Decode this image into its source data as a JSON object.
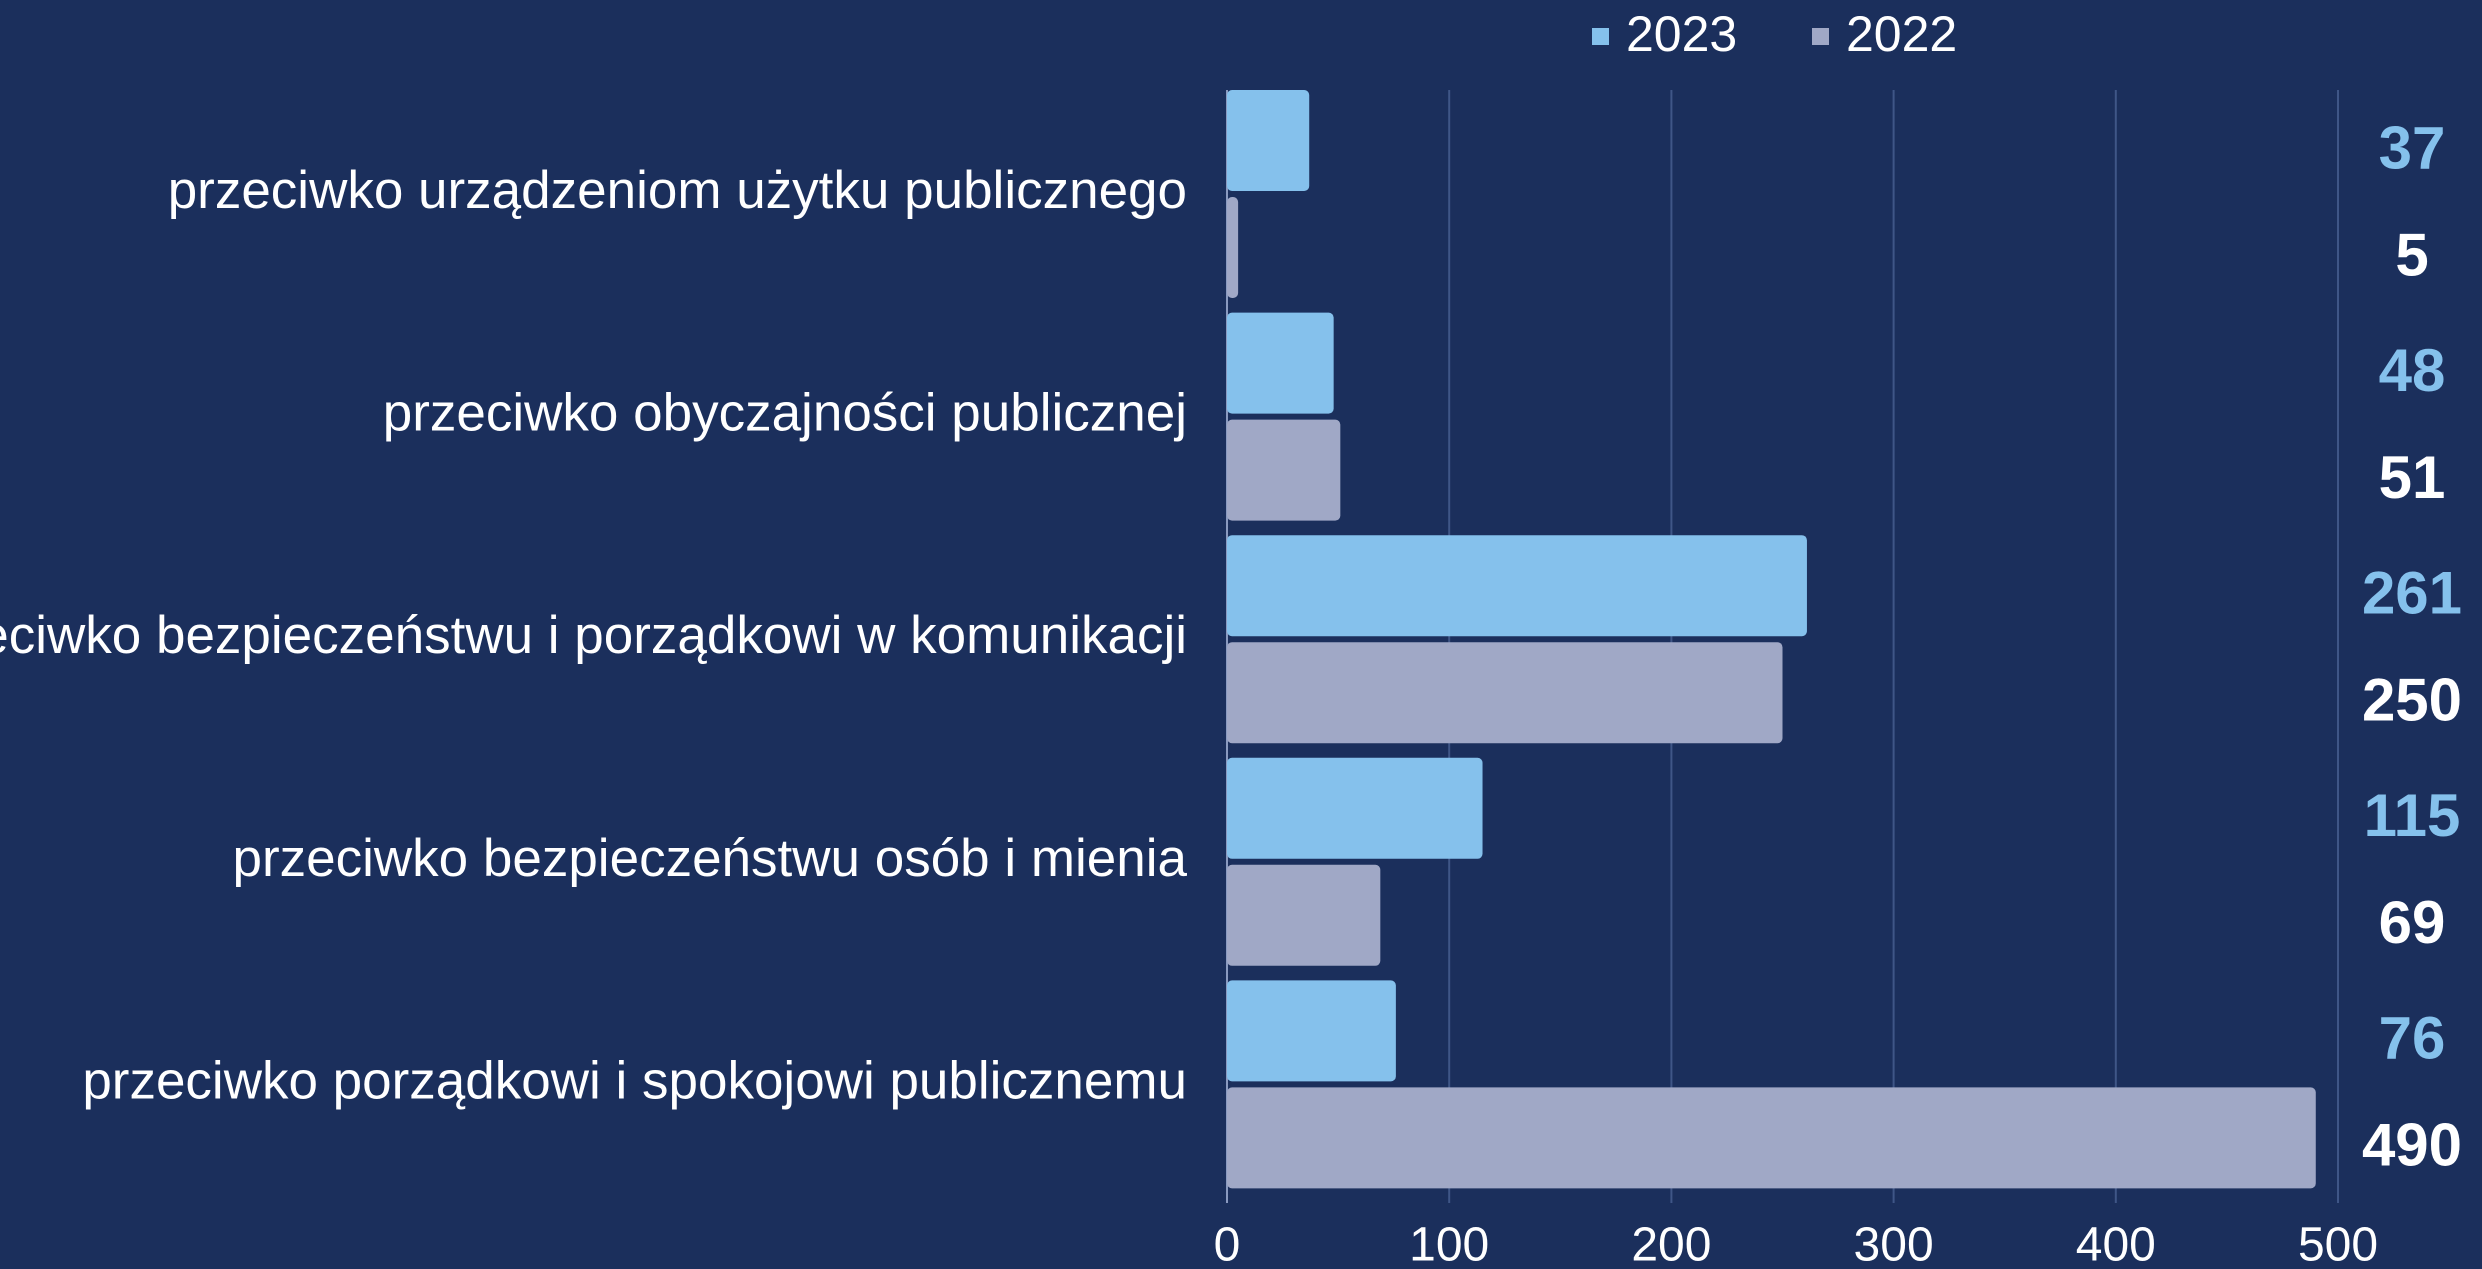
{
  "chart_data": {
    "type": "bar",
    "orientation": "horizontal",
    "categories": [
      "przeciwko urządzeniom użytku publicznego",
      "przeciwko obyczajności publicznej",
      "przeciwko bezpieczeństwu i porządkowi w komunikacji",
      "przeciwko bezpieczeństwu osób i mienia",
      "przeciwko porządkowi i spokojowi publicznemu"
    ],
    "series": [
      {
        "name": "2023",
        "color": "#85c1ec",
        "label_color": "#85c1ec",
        "values": [
          37,
          48,
          261,
          115,
          76
        ]
      },
      {
        "name": "2022",
        "color": "#a0a8c6",
        "label_color": "#ffffff",
        "values": [
          5,
          51,
          250,
          69,
          490
        ]
      }
    ],
    "xlim": [
      0,
      500
    ],
    "xticks": [
      0,
      100,
      200,
      300,
      400,
      500
    ],
    "grid": true,
    "legend": "top"
  }
}
